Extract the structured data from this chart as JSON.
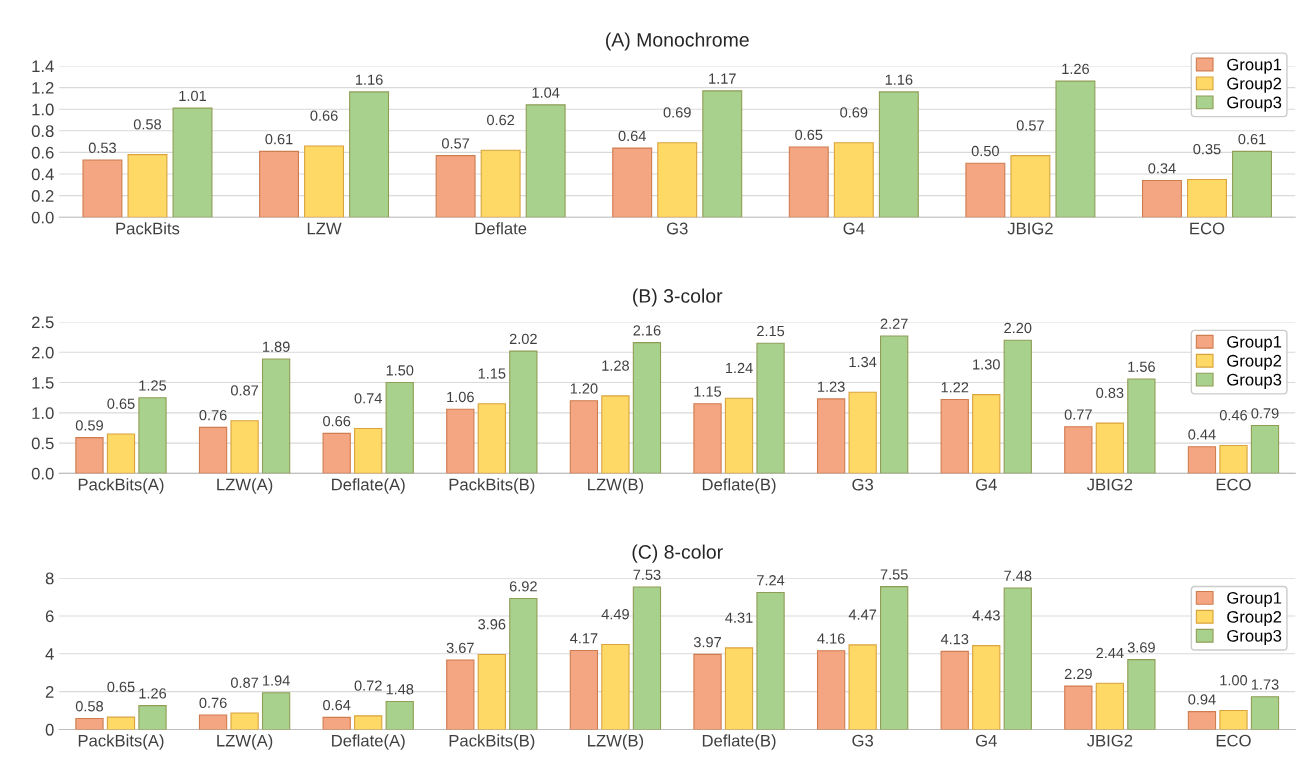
{
  "chart_data": [
    {
      "type": "bar",
      "title": "(A) Monochrome",
      "categories": [
        "PackBits",
        "LZW",
        "Deflate",
        "G3",
        "G4",
        "JBIG2",
        "ECO"
      ],
      "ylim": [
        0.0,
        1.4
      ],
      "yticks": [
        {
          "value": 0,
          "label": "0.0"
        },
        0.2,
        0.4,
        0.6,
        0.8,
        {
          "value": 1,
          "label": "1.0"
        },
        1.2,
        1.4
      ],
      "grid": "y",
      "legend": "top right",
      "series": [
        {
          "name": "Group1",
          "color": "#f4a582",
          "values": [
            0.53,
            0.61,
            0.57,
            0.64,
            0.65,
            0.5,
            0.34
          ],
          "value_labels": [
            "0.53",
            "0.61",
            "0.57",
            "0.64",
            "0.65",
            "0.50",
            "0.34"
          ]
        },
        {
          "name": "Group2",
          "color": "#ffd966",
          "values": [
            0.58,
            0.66,
            0.62,
            0.69,
            0.69,
            0.57,
            0.35
          ],
          "value_labels": [
            "0.58",
            "0.66",
            "0.62",
            "0.69",
            "0.69",
            "0.57",
            "0.35"
          ]
        },
        {
          "name": "Group3",
          "color": "#a9d18e",
          "values": [
            1.01,
            1.16,
            1.04,
            1.17,
            1.16,
            1.26,
            0.61
          ],
          "value_labels": [
            "1.01",
            "1.16",
            "1.04",
            "1.17",
            "1.16",
            "1.26",
            "0.61"
          ]
        }
      ]
    },
    {
      "type": "bar",
      "title": "(B) 3-color",
      "categories": [
        "PackBits(A)",
        "LZW(A)",
        "Deflate(A)",
        "PackBits(B)",
        "LZW(B)",
        "Deflate(B)",
        "G3",
        "G4",
        "JBIG2",
        "ECO"
      ],
      "ylim": [
        0.0,
        2.5
      ],
      "yticks": [
        {
          "value": 0,
          "label": "0.0"
        },
        0.5,
        {
          "value": 1,
          "label": "1.0"
        },
        1.5,
        {
          "value": 2,
          "label": "2.0"
        },
        2.5
      ],
      "grid": "y",
      "legend": "top right",
      "series": [
        {
          "name": "Group1",
          "color": "#f4a582",
          "values": [
            0.59,
            0.76,
            0.66,
            1.06,
            1.2,
            1.15,
            1.23,
            1.22,
            0.77,
            0.44
          ],
          "value_labels": [
            "0.59",
            "0.76",
            "0.66",
            "1.06",
            "1.20",
            "1.15",
            "1.23",
            "1.22",
            "0.77",
            "0.44"
          ]
        },
        {
          "name": "Group2",
          "color": "#ffd966",
          "values": [
            0.65,
            0.87,
            0.74,
            1.15,
            1.28,
            1.24,
            1.34,
            1.3,
            0.83,
            0.46
          ],
          "value_labels": [
            "0.65",
            "0.87",
            "0.74",
            "1.15",
            "1.28",
            "1.24",
            "1.34",
            "1.30",
            "0.83",
            "0.46"
          ]
        },
        {
          "name": "Group3",
          "color": "#a9d18e",
          "values": [
            1.25,
            1.89,
            1.5,
            2.02,
            2.16,
            2.15,
            2.27,
            2.2,
            1.56,
            0.79
          ],
          "value_labels": [
            "1.25",
            "1.89",
            "1.50",
            "2.02",
            "2.16",
            "2.15",
            "2.27",
            "2.20",
            "1.56",
            "0.79"
          ]
        }
      ]
    },
    {
      "type": "bar",
      "title": "(C) 8-color",
      "categories": [
        "PackBits(A)",
        "LZW(A)",
        "Deflate(A)",
        "PackBits(B)",
        "LZW(B)",
        "Deflate(B)",
        "G3",
        "G4",
        "JBIG2",
        "ECO"
      ],
      "ylim": [
        0,
        8
      ],
      "yticks": [
        0,
        2,
        4,
        6,
        8
      ],
      "grid": "y",
      "legend": "top right",
      "series": [
        {
          "name": "Group1",
          "color": "#f4a582",
          "values": [
            0.58,
            0.76,
            0.64,
            3.67,
            4.17,
            3.97,
            4.16,
            4.13,
            2.29,
            0.94
          ],
          "value_labels": [
            "0.58",
            "0.76",
            "0.64",
            "3.67",
            "4.17",
            "3.97",
            "4.16",
            "4.13",
            "2.29",
            "0.94"
          ]
        },
        {
          "name": "Group2",
          "color": "#ffd966",
          "values": [
            0.65,
            0.87,
            0.72,
            3.96,
            4.49,
            4.31,
            4.47,
            4.43,
            2.44,
            1.0
          ],
          "value_labels": [
            "0.65",
            "0.87",
            "0.72",
            "3.96",
            "4.49",
            "4.31",
            "4.47",
            "4.43",
            "2.44",
            "1.00"
          ]
        },
        {
          "name": "Group3",
          "color": "#a9d18e",
          "values": [
            1.26,
            1.94,
            1.48,
            6.92,
            7.53,
            7.24,
            7.55,
            7.48,
            3.69,
            1.73
          ],
          "value_labels": [
            "1.26",
            "1.94",
            "1.48",
            "6.92",
            "7.53",
            "7.24",
            "7.55",
            "7.48",
            "3.69",
            "1.73"
          ]
        }
      ]
    }
  ]
}
